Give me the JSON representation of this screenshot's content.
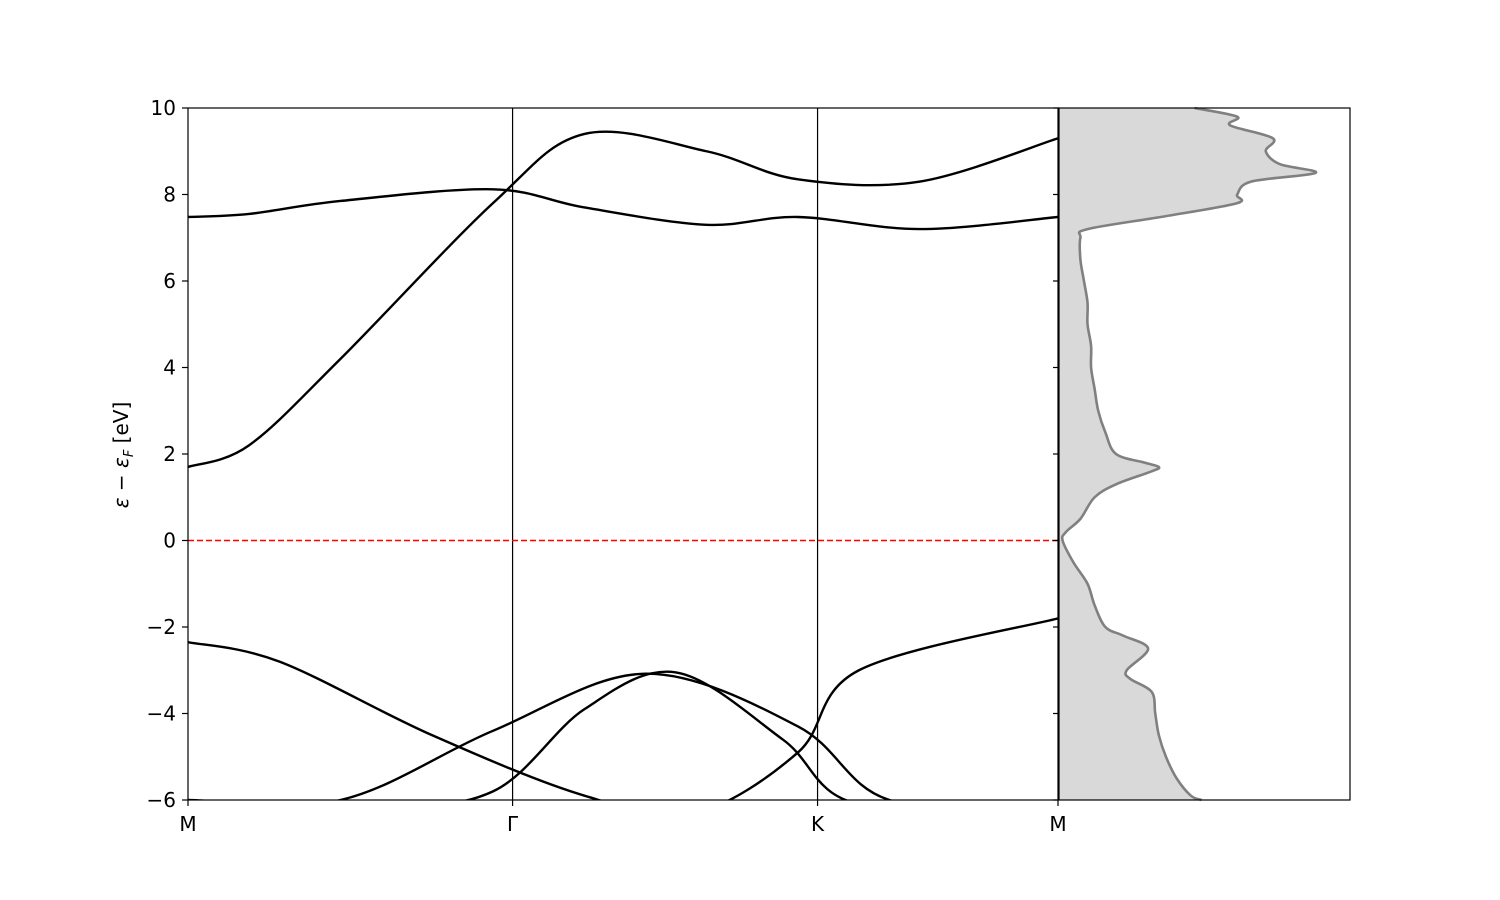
{
  "chart_data": [
    {
      "type": "line",
      "title": "",
      "xlabel": "",
      "ylabel": "ε − ε_F [eV]",
      "ylabel_parts": {
        "eps": "ε",
        "minus": " − ",
        "sub": "F",
        "unit": " [eV]"
      },
      "ylim": [
        -6,
        10
      ],
      "yticks": [
        -6,
        -4,
        -2,
        0,
        2,
        4,
        6,
        8,
        10
      ],
      "ytick_labels": [
        "−6",
        "−4",
        "−2",
        "0",
        "2",
        "4",
        "6",
        "8",
        "10"
      ],
      "xticks": [
        0,
        1,
        2,
        3
      ],
      "xtick_labels": [
        "M",
        "Γ",
        "K",
        "M"
      ],
      "xlim": [
        0,
        3
      ],
      "kpoint_segments": [
        [
          0,
          1.0643
        ],
        [
          1.0643,
          2.0643
        ],
        [
          2.0643,
          2.8527
        ]
      ],
      "grid": false,
      "fermi_level": {
        "y": 0,
        "color": "#ff0000",
        "style": "dashed"
      },
      "band_color": "#000000",
      "series": [
        {
          "x": [
            0,
            0.2,
            0.5,
            1.0,
            1.3,
            1.7,
            2.0,
            2.4,
            2.853
          ],
          "values": [
            7.48,
            7.55,
            7.85,
            8.12,
            7.7,
            7.3,
            7.48,
            7.2,
            7.48
          ]
        },
        {
          "x": [
            0,
            0.2,
            0.5,
            1.0,
            1.3,
            1.7,
            2.0,
            2.4,
            2.853
          ],
          "values": [
            1.7,
            2.2,
            4.2,
            7.8,
            9.4,
            9.0,
            8.35,
            8.3,
            9.3
          ]
        },
        {
          "x": [
            0,
            0.3,
            0.8,
            1.3,
            1.66,
            2.0,
            2.2,
            2.853
          ],
          "values": [
            -2.35,
            -2.8,
            -4.5,
            -5.9,
            -6.3,
            -4.9,
            -3.0,
            -1.8
          ]
        },
        {
          "x": [
            0,
            0.5,
            1.0,
            1.5,
            2.0,
            2.3,
            2.853
          ],
          "values": [
            -6.0,
            -6.0,
            -4.4,
            -3.08,
            -4.3,
            -6.0,
            -6.2
          ]
        },
        {
          "x": [
            0,
            0.6,
            1.0,
            1.3,
            1.6,
            1.95,
            2.2,
            2.853
          ],
          "values": [
            -6.2,
            -6.2,
            -5.8,
            -3.9,
            -3.05,
            -4.6,
            -6.1,
            -6.1
          ]
        }
      ],
      "bands_note_labels": []
    },
    {
      "type": "area",
      "xlabel": "",
      "ylabel": "",
      "ylim": [
        -6,
        10
      ],
      "fill_color": "#d9d9d9",
      "line_color": "#808080",
      "x": [
        -6.0,
        -5.9,
        -5.5,
        -5.0,
        -4.5,
        -4.0,
        -3.5,
        -3.2,
        -3.0,
        -2.5,
        -2.2,
        -2.0,
        -1.5,
        -1.0,
        -0.5,
        0.0,
        0.2,
        0.5,
        1.0,
        1.3,
        1.6,
        1.7,
        1.8,
        2.0,
        2.5,
        3.0,
        3.5,
        4.0,
        4.5,
        5.0,
        5.5,
        6.0,
        6.5,
        7.0,
        7.2,
        7.5,
        7.8,
        8.0,
        8.3,
        8.5,
        8.7,
        9.0,
        9.3,
        9.6,
        9.8,
        10.0
      ],
      "values": [
        2.0,
        1.85,
        1.65,
        1.5,
        1.4,
        1.35,
        1.3,
        1.0,
        0.95,
        1.25,
        0.9,
        0.65,
        0.5,
        0.4,
        0.2,
        0.05,
        0.1,
        0.3,
        0.5,
        0.8,
        1.3,
        1.4,
        1.2,
        0.8,
        0.65,
        0.55,
        0.5,
        0.45,
        0.45,
        0.4,
        0.4,
        0.35,
        0.3,
        0.3,
        0.4,
        1.5,
        2.5,
        2.5,
        2.7,
        3.6,
        3.1,
        2.9,
        3.0,
        2.4,
        2.5,
        1.9
      ]
    }
  ]
}
